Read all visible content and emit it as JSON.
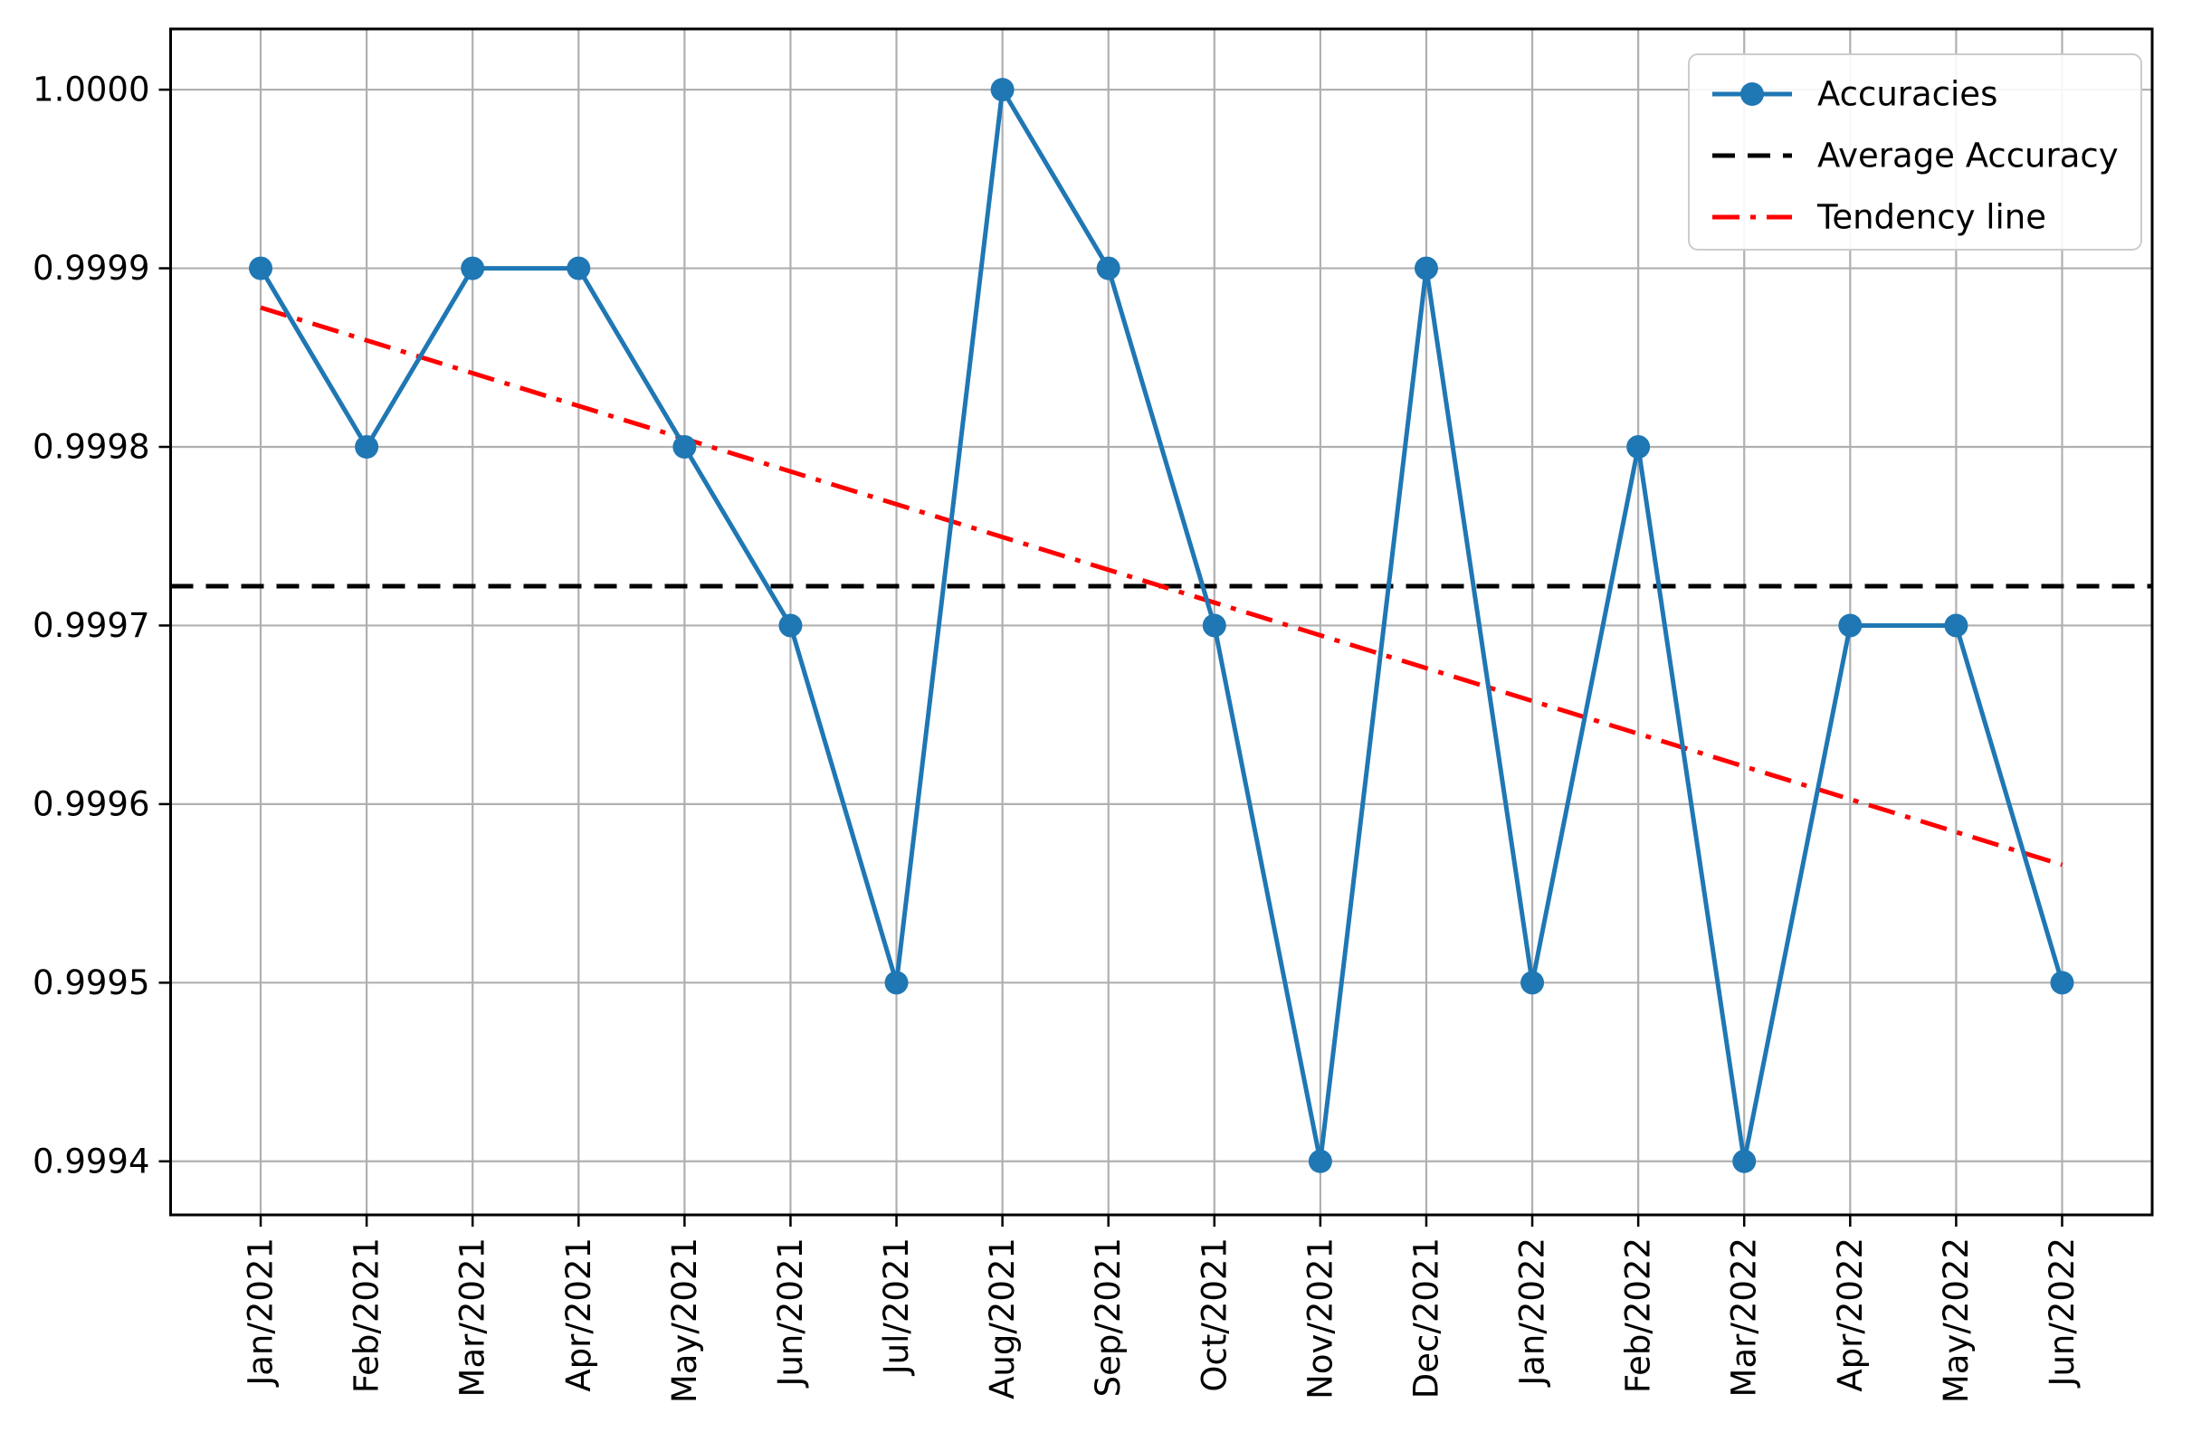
{
  "chart_data": {
    "type": "line",
    "title": "",
    "xlabel": "",
    "ylabel": "",
    "categories": [
      "Jan/2021",
      "Feb/2021",
      "Mar/2021",
      "Apr/2021",
      "May/2021",
      "Jun/2021",
      "Jul/2021",
      "Aug/2021",
      "Sep/2021",
      "Oct/2021",
      "Nov/2021",
      "Dec/2021",
      "Jan/2022",
      "Feb/2022",
      "Mar/2022",
      "Apr/2022",
      "May/2022",
      "Jun/2022"
    ],
    "series": [
      {
        "name": "Accuracies",
        "kind": "line-with-markers",
        "color": "#1f77b4",
        "values": [
          0.9999,
          0.9998,
          0.9999,
          0.9999,
          0.9998,
          0.9997,
          0.9995,
          1.0,
          0.9999,
          0.9997,
          0.9994,
          0.9999,
          0.9995,
          0.9998,
          0.9994,
          0.9997,
          0.9997,
          0.9995
        ]
      },
      {
        "name": "Average Accuracy",
        "kind": "horizontal-dashed",
        "color": "#000000",
        "value": 0.999722
      },
      {
        "name": "Tendency line",
        "kind": "trend-dashdot",
        "color": "#ff0000",
        "start_value": 0.999878,
        "end_value": 0.999566
      }
    ],
    "ylim": [
      0.99937,
      1.000034
    ],
    "yticks": [
      1.0,
      0.9999,
      0.9998,
      0.9997,
      0.9996,
      0.9995,
      0.9994
    ],
    "ytick_labels": [
      "1.0000",
      "0.9999",
      "0.9998",
      "0.9997",
      "0.9996",
      "0.9995",
      "0.9994"
    ],
    "grid": true,
    "grid_color": "#b0b0b0",
    "axis_color": "#000000",
    "background": "#ffffff",
    "legend": {
      "position": "upper-right",
      "entries": [
        "Accuracies",
        "Average Accuracy",
        "Tendency line"
      ]
    }
  }
}
